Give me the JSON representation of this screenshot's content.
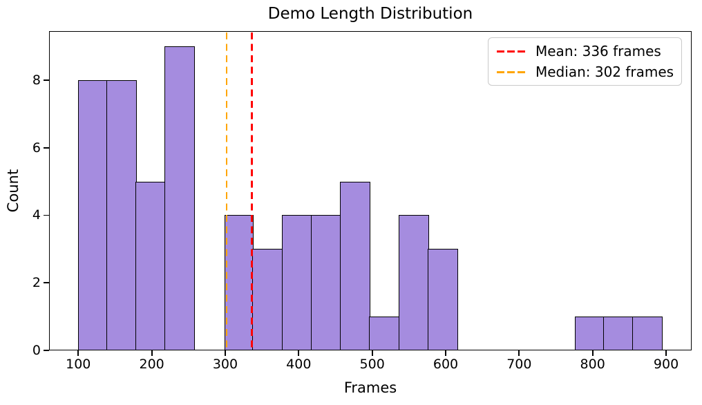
{
  "chart_data": {
    "type": "bar",
    "subtype": "histogram",
    "title": "Demo Length Distribution",
    "xlabel": "Frames",
    "ylabel": "Count",
    "bins": {
      "start": 100,
      "width": 39.75,
      "count": 20
    },
    "counts": [
      8,
      8,
      5,
      9,
      0,
      4,
      3,
      4,
      4,
      5,
      1,
      4,
      3,
      0,
      0,
      0,
      0,
      1,
      1,
      1
    ],
    "xticks": [
      100,
      200,
      300,
      400,
      500,
      600,
      700,
      800,
      900
    ],
    "yticks": [
      0,
      2,
      4,
      6,
      8
    ],
    "xlim": [
      60.25,
      934.75
    ],
    "ylim": [
      0,
      9.45
    ],
    "grid": false,
    "legend": {
      "position": "upper-right",
      "entries": [
        {
          "name": "mean",
          "label": "Mean: 336 frames",
          "value": 336,
          "color": "#ff0000",
          "linestyle": "dashed"
        },
        {
          "name": "median",
          "label": "Median: 302 frames",
          "value": 302,
          "color": "#ffa500",
          "linestyle": "dashed"
        }
      ]
    },
    "colors": {
      "bar_fill": "#a58cdf",
      "bar_edge": "#000000",
      "spine": "#000000",
      "text": "#000000"
    }
  }
}
